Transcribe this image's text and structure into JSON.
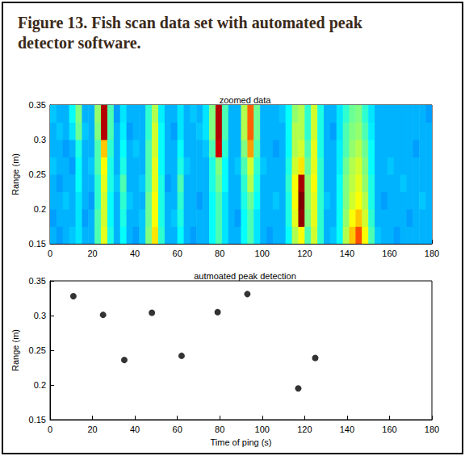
{
  "title": "Figure 13.  Fish scan data set with automated peak detector software.",
  "chart_data": [
    {
      "type": "heatmap",
      "title": "zoomed data",
      "ylabel": "Range (m)",
      "xlim": [
        0,
        180
      ],
      "xticks": [
        0,
        20,
        40,
        60,
        80,
        100,
        120,
        140,
        160,
        180
      ],
      "ylim": [
        0.15,
        0.35
      ],
      "yticks": [
        0.15,
        0.2,
        0.25,
        0.3,
        0.35
      ],
      "grid": false,
      "zlim": [
        0,
        1
      ],
      "x_edges": [
        0,
        3,
        6,
        9,
        12,
        15,
        18,
        21,
        24,
        27,
        30,
        33,
        36,
        39,
        42,
        45,
        48,
        51,
        54,
        57,
        60,
        63,
        66,
        69,
        72,
        75,
        78,
        81,
        84,
        87,
        90,
        93,
        96,
        99,
        102,
        105,
        108,
        111,
        114,
        117,
        120,
        123,
        126,
        129,
        132,
        135,
        138,
        141,
        144,
        147,
        150,
        153,
        156,
        159,
        162,
        165,
        168,
        171,
        174,
        177,
        180
      ],
      "y_edges": [
        0.15,
        0.175,
        0.2,
        0.225,
        0.25,
        0.275,
        0.3,
        0.325,
        0.35
      ],
      "columns": [
        [
          0.3,
          0.28,
          0.3,
          0.3,
          0.32,
          0.3,
          0.3,
          0.32
        ],
        [
          0.28,
          0.3,
          0.3,
          0.28,
          0.3,
          0.3,
          0.32,
          0.3
        ],
        [
          0.3,
          0.3,
          0.32,
          0.3,
          0.3,
          0.28,
          0.3,
          0.3
        ],
        [
          0.32,
          0.3,
          0.3,
          0.3,
          0.28,
          0.3,
          0.35,
          0.38
        ],
        [
          0.35,
          0.35,
          0.35,
          0.38,
          0.38,
          0.4,
          0.48,
          0.5
        ],
        [
          0.3,
          0.28,
          0.3,
          0.3,
          0.3,
          0.3,
          0.32,
          0.3
        ],
        [
          0.3,
          0.3,
          0.28,
          0.3,
          0.32,
          0.3,
          0.3,
          0.3
        ],
        [
          0.45,
          0.45,
          0.42,
          0.42,
          0.45,
          0.45,
          0.5,
          0.52
        ],
        [
          0.6,
          0.58,
          0.58,
          0.6,
          0.62,
          0.68,
          0.95,
          0.95
        ],
        [
          0.4,
          0.38,
          0.38,
          0.4,
          0.4,
          0.42,
          0.45,
          0.45
        ],
        [
          0.3,
          0.3,
          0.3,
          0.32,
          0.3,
          0.3,
          0.3,
          0.28
        ],
        [
          0.38,
          0.4,
          0.42,
          0.45,
          0.4,
          0.38,
          0.36,
          0.35
        ],
        [
          0.3,
          0.3,
          0.32,
          0.3,
          0.3,
          0.3,
          0.28,
          0.3
        ],
        [
          0.28,
          0.3,
          0.3,
          0.3,
          0.3,
          0.32,
          0.3,
          0.3
        ],
        [
          0.32,
          0.32,
          0.3,
          0.32,
          0.3,
          0.3,
          0.3,
          0.3
        ],
        [
          0.5,
          0.48,
          0.48,
          0.45,
          0.45,
          0.45,
          0.42,
          0.42
        ],
        [
          0.65,
          0.62,
          0.62,
          0.6,
          0.6,
          0.58,
          0.58,
          0.55
        ],
        [
          0.42,
          0.4,
          0.4,
          0.4,
          0.38,
          0.38,
          0.38,
          0.36
        ],
        [
          0.3,
          0.3,
          0.3,
          0.28,
          0.3,
          0.3,
          0.3,
          0.3
        ],
        [
          0.3,
          0.32,
          0.3,
          0.3,
          0.3,
          0.3,
          0.28,
          0.3
        ],
        [
          0.38,
          0.4,
          0.42,
          0.45,
          0.4,
          0.38,
          0.35,
          0.35
        ],
        [
          0.3,
          0.3,
          0.3,
          0.3,
          0.32,
          0.3,
          0.3,
          0.3
        ],
        [
          0.28,
          0.3,
          0.3,
          0.3,
          0.3,
          0.3,
          0.3,
          0.32
        ],
        [
          0.3,
          0.3,
          0.28,
          0.3,
          0.3,
          0.3,
          0.32,
          0.3
        ],
        [
          0.3,
          0.3,
          0.3,
          0.3,
          0.3,
          0.32,
          0.35,
          0.35
        ],
        [
          0.38,
          0.38,
          0.38,
          0.4,
          0.4,
          0.45,
          0.5,
          0.5
        ],
        [
          0.45,
          0.45,
          0.45,
          0.48,
          0.5,
          0.92,
          0.95,
          0.95
        ],
        [
          0.35,
          0.35,
          0.35,
          0.38,
          0.38,
          0.42,
          0.45,
          0.45
        ],
        [
          0.3,
          0.3,
          0.3,
          0.3,
          0.3,
          0.3,
          0.3,
          0.3
        ],
        [
          0.3,
          0.28,
          0.3,
          0.3,
          0.32,
          0.3,
          0.3,
          0.3
        ],
        [
          0.38,
          0.38,
          0.4,
          0.42,
          0.45,
          0.5,
          0.55,
          0.55
        ],
        [
          0.45,
          0.45,
          0.48,
          0.55,
          0.58,
          0.72,
          0.78,
          0.78
        ],
        [
          0.35,
          0.35,
          0.38,
          0.4,
          0.42,
          0.45,
          0.48,
          0.48
        ],
        [
          0.3,
          0.3,
          0.3,
          0.3,
          0.32,
          0.3,
          0.3,
          0.3
        ],
        [
          0.28,
          0.3,
          0.3,
          0.3,
          0.3,
          0.3,
          0.3,
          0.3
        ],
        [
          0.3,
          0.3,
          0.32,
          0.3,
          0.3,
          0.28,
          0.3,
          0.3
        ],
        [
          0.3,
          0.3,
          0.3,
          0.3,
          0.3,
          0.3,
          0.3,
          0.32
        ],
        [
          0.38,
          0.4,
          0.4,
          0.42,
          0.4,
          0.38,
          0.38,
          0.38
        ],
        [
          0.55,
          0.6,
          0.62,
          0.62,
          0.58,
          0.55,
          0.55,
          0.52
        ],
        [
          0.62,
          0.98,
          1.0,
          0.96,
          0.65,
          0.58,
          0.55,
          0.55
        ],
        [
          0.45,
          0.5,
          0.52,
          0.52,
          0.48,
          0.45,
          0.42,
          0.42
        ],
        [
          0.58,
          0.6,
          0.6,
          0.62,
          0.6,
          0.6,
          0.58,
          0.58
        ],
        [
          0.42,
          0.42,
          0.42,
          0.42,
          0.42,
          0.4,
          0.4,
          0.4
        ],
        [
          0.3,
          0.3,
          0.32,
          0.3,
          0.3,
          0.3,
          0.3,
          0.3
        ],
        [
          0.32,
          0.3,
          0.3,
          0.3,
          0.3,
          0.3,
          0.28,
          0.3
        ],
        [
          0.38,
          0.38,
          0.38,
          0.38,
          0.36,
          0.36,
          0.35,
          0.35
        ],
        [
          0.55,
          0.52,
          0.5,
          0.5,
          0.48,
          0.45,
          0.45,
          0.42
        ],
        [
          0.68,
          0.62,
          0.58,
          0.56,
          0.55,
          0.52,
          0.5,
          0.48
        ],
        [
          0.8,
          0.68,
          0.62,
          0.6,
          0.58,
          0.55,
          0.52,
          0.5
        ],
        [
          0.62,
          0.58,
          0.55,
          0.52,
          0.5,
          0.48,
          0.45,
          0.42
        ],
        [
          0.45,
          0.42,
          0.4,
          0.4,
          0.38,
          0.38,
          0.36,
          0.35
        ],
        [
          0.32,
          0.3,
          0.3,
          0.3,
          0.3,
          0.3,
          0.3,
          0.3
        ],
        [
          0.3,
          0.3,
          0.28,
          0.3,
          0.3,
          0.3,
          0.3,
          0.3
        ],
        [
          0.3,
          0.3,
          0.3,
          0.3,
          0.32,
          0.3,
          0.3,
          0.3
        ],
        [
          0.28,
          0.3,
          0.3,
          0.3,
          0.3,
          0.3,
          0.3,
          0.3
        ],
        [
          0.3,
          0.3,
          0.3,
          0.32,
          0.3,
          0.3,
          0.3,
          0.3
        ],
        [
          0.3,
          0.28,
          0.3,
          0.3,
          0.3,
          0.3,
          0.3,
          0.3
        ],
        [
          0.3,
          0.3,
          0.3,
          0.3,
          0.3,
          0.28,
          0.3,
          0.3
        ],
        [
          0.3,
          0.3,
          0.32,
          0.3,
          0.3,
          0.3,
          0.3,
          0.3
        ],
        [
          0.3,
          0.3,
          0.3,
          0.3,
          0.3,
          0.3,
          0.3,
          0.28
        ]
      ]
    },
    {
      "type": "scatter",
      "title": "autmoated peak detection",
      "xlabel": "Time of ping (s)",
      "ylabel": "Range (m)",
      "x": [
        11,
        25,
        35,
        48,
        62,
        79,
        93,
        117,
        125
      ],
      "values": [
        0.328,
        0.301,
        0.236,
        0.304,
        0.242,
        0.305,
        0.331,
        0.195,
        0.239
      ],
      "color": "#000000",
      "marker": "circle",
      "xlim": [
        0,
        180
      ],
      "xticks": [
        0,
        20,
        40,
        60,
        80,
        100,
        120,
        140,
        160,
        180
      ],
      "ylim": [
        0.15,
        0.35
      ],
      "yticks": [
        0.15,
        0.2,
        0.25,
        0.3,
        0.35
      ],
      "grid": false
    }
  ]
}
